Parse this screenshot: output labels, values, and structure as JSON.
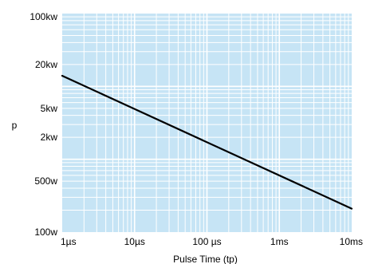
{
  "chart_data": {
    "type": "line",
    "title": "",
    "xlabel": "Pulse Time (tp)",
    "ylabel": "p",
    "x_scale": "log",
    "y_scale": "log",
    "x_unit": "s",
    "y_unit": "W",
    "xlim": [
      1e-06,
      0.01
    ],
    "ylim": [
      100,
      100000
    ],
    "grid": true,
    "legend": "none",
    "x_ticks": [
      {
        "value": 1e-06,
        "label": "1µs"
      },
      {
        "value": 1e-05,
        "label": "10µs"
      },
      {
        "value": 0.0001,
        "label": "100 µs"
      },
      {
        "value": 0.001,
        "label": "1ms"
      },
      {
        "value": 0.01,
        "label": "10ms"
      }
    ],
    "y_ticks": [
      {
        "value": 100000,
        "label": "100kw"
      },
      {
        "value": 20000,
        "label": "20kw"
      },
      {
        "value": 5000,
        "label": "5kw"
      },
      {
        "value": 2000,
        "label": "2kw"
      },
      {
        "value": 500,
        "label": "500w"
      },
      {
        "value": 100,
        "label": "100w"
      }
    ],
    "series": [
      {
        "x": [
          1e-06,
          0.01
        ],
        "y": [
          14000,
          210
        ],
        "color": "#000000"
      }
    ]
  },
  "colors": {
    "plot_background": "#c6e4f5",
    "gridline": "#ffffff",
    "series_line": "#000000"
  }
}
